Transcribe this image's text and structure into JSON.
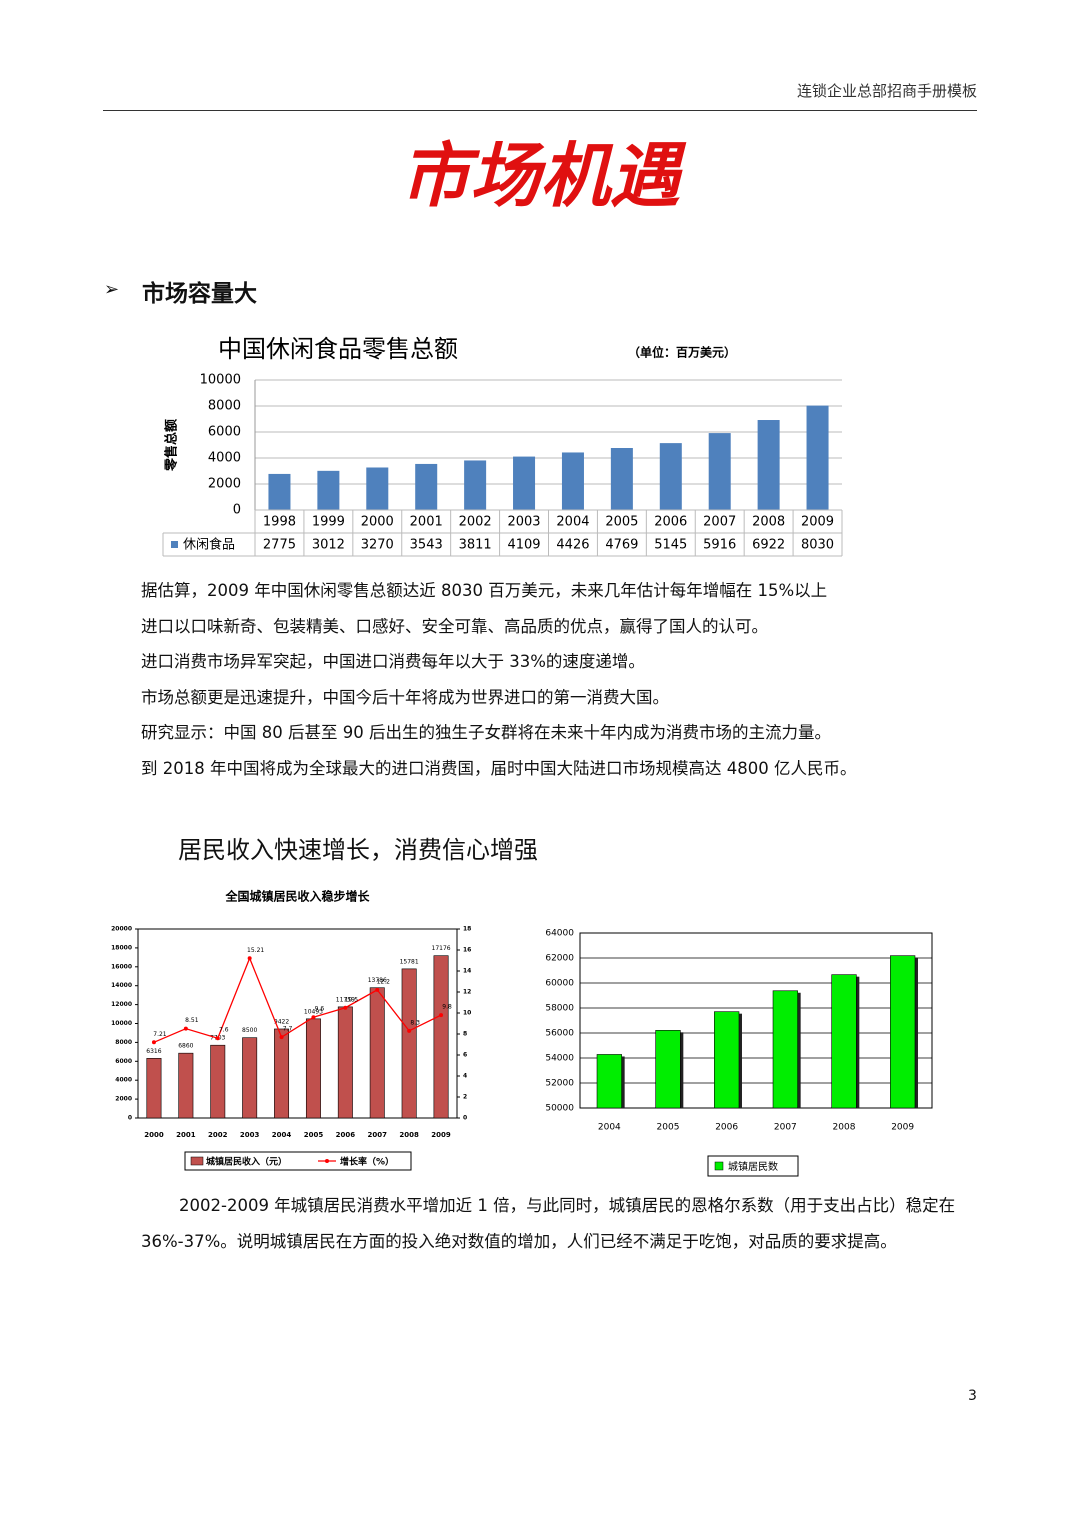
{
  "header": "连锁企业总部招商手册模板",
  "title": "市场机遇",
  "section_heading": "市场容量大",
  "paragraphs": [
    "据估算，2009 年中国休闲零售总额达近 8030 百万美元，未来几年估计每年增幅在 15%以上",
    "进口以口味新奇、包装精美、口感好、安全可靠、高品质的优点，赢得了国人的认可。",
    "进口消费市场异军突起，中国进口消费每年以大于 33%的速度递增。",
    "市场总额更是迅速提升，中国今后十年将成为世界进口的第一消费大国。",
    "研究显示：中国 80 后甚至 90 后出生的独生子女群将在未来十年内成为消费市场的主流力量。",
    "到 2018 年中国将成为全球最大的进口消费国，届时中国大陆进口市场规模高达 4800 亿人民币。"
  ],
  "subheading": "居民收入快速增长，消费信心增强",
  "closing_paragraph": "2002-2009 年城镇居民消费水平增加近 1 倍，与此同时，城镇居民的恩格尔系数（用于支出占比）稳定在 36%-37%。说明城镇居民在方面的投入绝对数值的增加，人们已经不满足于吃饱，对品质的要求提高。",
  "page_number": "3",
  "chart_data": [
    {
      "type": "bar",
      "title": "中国休闲食品零售总额",
      "subtitle": "（单位：百万美元）",
      "y_label": "零售总额",
      "categories": [
        "1998",
        "1999",
        "2000",
        "2001",
        "2002",
        "2003",
        "2004",
        "2005",
        "2006",
        "2007",
        "2008",
        "2009"
      ],
      "series": [
        {
          "name": "休闲食品",
          "color": "#4f81bd",
          "values": [
            2775,
            3012,
            3270,
            3543,
            3811,
            4109,
            4426,
            4769,
            5145,
            5916,
            6922,
            8030
          ]
        }
      ],
      "ylim": [
        0,
        10000
      ],
      "yticks": [
        0,
        2000,
        4000,
        6000,
        8000,
        10000
      ],
      "grid": true,
      "data_table": true
    },
    {
      "type": "combo",
      "title": "全国城镇居民收入稳步增长",
      "categories": [
        "2000",
        "2001",
        "2002",
        "2003",
        "2004",
        "2005",
        "2006",
        "2007",
        "2008",
        "2009"
      ],
      "series": [
        {
          "name": "城镇居民收入（元）",
          "type": "bar",
          "color": "#c0504d",
          "values": [
            6316,
            6860,
            7703,
            8500,
            9422,
            10493,
            11759,
            13786,
            15781,
            17176
          ]
        },
        {
          "name": "增长率（%）",
          "type": "line",
          "axis": "y2",
          "color": "#ff0000",
          "values": [
            7.21,
            8.51,
            7.6,
            15.21,
            7.7,
            9.6,
            10.5,
            12.2,
            8.3,
            9.8
          ]
        }
      ],
      "ylim": [
        0,
        20000
      ],
      "yticks": [
        0,
        2000,
        4000,
        6000,
        8000,
        10000,
        12000,
        14000,
        16000,
        18000,
        20000
      ],
      "y2lim": [
        0,
        18
      ],
      "y2ticks": [
        0,
        2,
        4,
        6,
        8,
        10,
        12,
        14,
        16,
        18
      ],
      "grid": false,
      "legend": "bottom"
    },
    {
      "type": "bar",
      "categories": [
        "2004",
        "2005",
        "2006",
        "2007",
        "2008",
        "2009"
      ],
      "series": [
        {
          "name": "城镇居民数",
          "color": "#00ee00",
          "values": [
            54283,
            56212,
            57706,
            59379,
            60667,
            62186
          ]
        }
      ],
      "ylim": [
        50000,
        64000
      ],
      "yticks": [
        50000,
        52000,
        54000,
        56000,
        58000,
        60000,
        62000,
        64000
      ],
      "grid": true,
      "legend": "bottom"
    }
  ]
}
